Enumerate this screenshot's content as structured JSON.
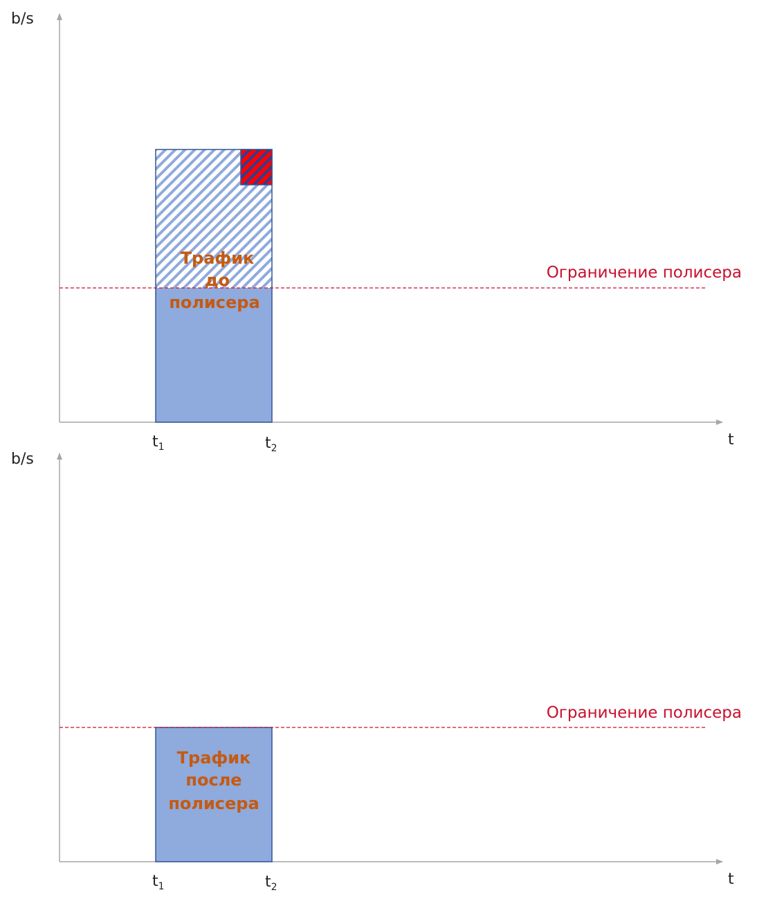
{
  "diagrams": [
    {
      "id": "top",
      "y_axis_label": "b/s",
      "x_axis_label": "t",
      "ticks": [
        {
          "main": "t",
          "sub": "1"
        },
        {
          "main": "t",
          "sub": "2"
        }
      ],
      "limit_label": "Ограничение полисера",
      "traffic_label_lines": [
        "Трафик",
        "до",
        "полисера"
      ]
    },
    {
      "id": "bottom",
      "y_axis_label": "b/s",
      "x_axis_label": "t",
      "ticks": [
        {
          "main": "t",
          "sub": "1"
        },
        {
          "main": "t",
          "sub": "2"
        }
      ],
      "limit_label": "Ограничение полисера",
      "traffic_label_lines": [
        "Трафик",
        "после",
        "полисера"
      ]
    }
  ],
  "colors": {
    "axis": "#a6a6a6",
    "bar_fill": "#8faadc",
    "bar_stroke": "#2f5597",
    "hatch": "#8faadc",
    "excess_hatch": "#ff0000",
    "limit_line": "#c8102e",
    "traffic_text": "#c55a11"
  }
}
